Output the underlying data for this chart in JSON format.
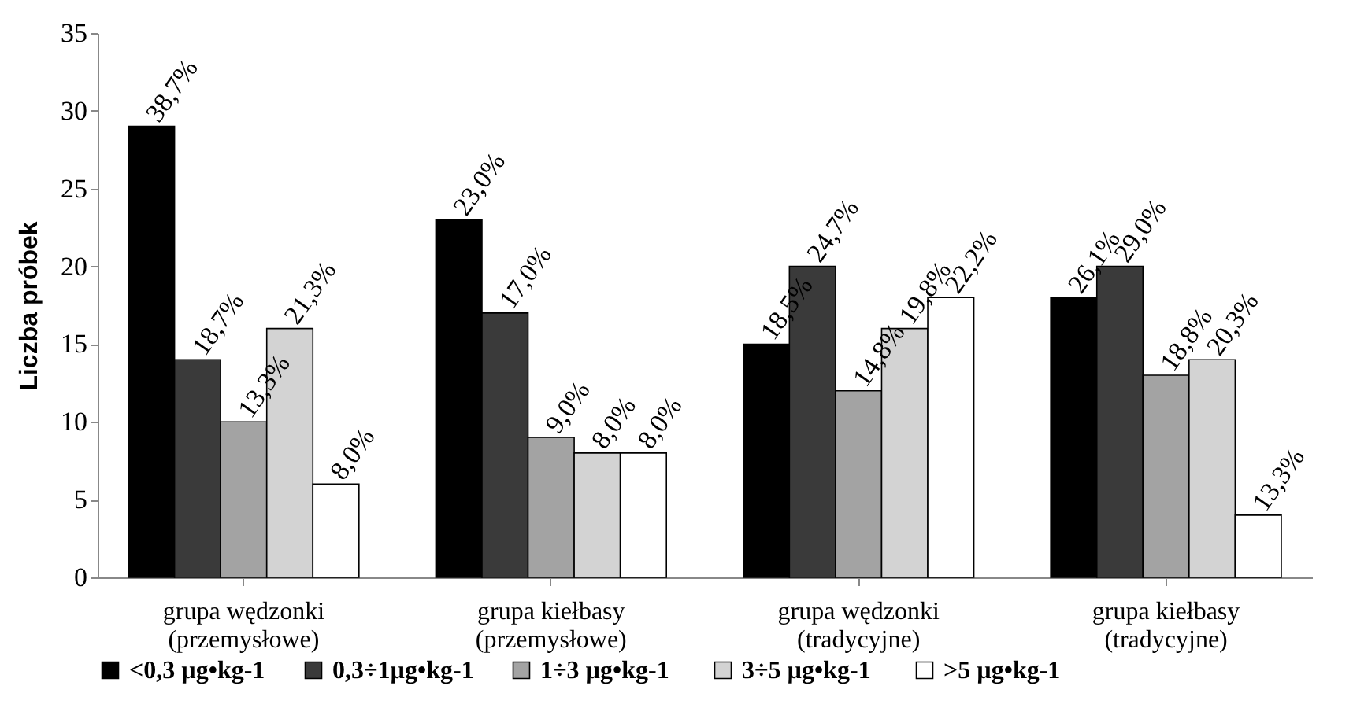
{
  "chart_data": {
    "type": "bar",
    "ylabel": "Liczba próbek",
    "categories": [
      "grupa wędzonki\n(przemysłowe)",
      "grupa kiełbasy\n(przemysłowe)",
      "grupa wędzonki\n(tradycyjne)",
      "grupa kiełbasy\n(tradycyjne)"
    ],
    "series": [
      {
        "name": "<0,3 µg•kg-1",
        "color": "#000000",
        "values": [
          29,
          23,
          15,
          18
        ]
      },
      {
        "name": "0,3÷1µg•kg-1",
        "color": "#3a3a3a",
        "values": [
          14,
          17,
          20,
          20
        ]
      },
      {
        "name": "1÷3  µg•kg-1",
        "color": "#a3a3a3",
        "values": [
          10,
          9,
          12,
          13
        ]
      },
      {
        "name": "3÷5  µg•kg-1",
        "color": "#d3d3d3",
        "values": [
          16,
          8,
          16,
          14
        ]
      },
      {
        "name": ">5 µg•kg-1",
        "color": "#ffffff",
        "values": [
          6,
          8,
          18,
          4
        ]
      }
    ],
    "annotations": [
      "38,7%",
      "23,0%",
      "18,5%",
      "26,1%",
      "18,7%",
      "17,0%",
      "24,7%",
      "29,0%",
      "13,3%",
      "9,0%",
      "14,8%",
      "18,8%",
      "21,3%",
      "8,0%",
      "19,8%",
      "20,3%",
      "8,0%",
      "8,0%",
      "22,2%",
      "13,3%"
    ],
    "ylim": [
      0,
      35
    ],
    "yticks": [
      0,
      5,
      10,
      15,
      20,
      25,
      30,
      35
    ],
    "grid": false,
    "legend": "bottom"
  }
}
